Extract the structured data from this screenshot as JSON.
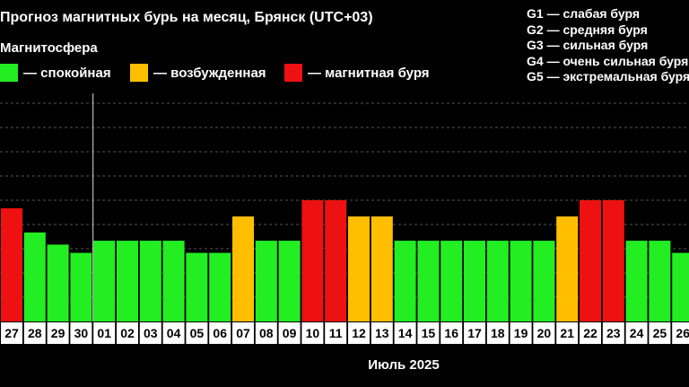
{
  "header": {
    "title": "Прогноз магнитных бурь на месяц, Брянск (UTC+03)",
    "magnetosphere_label": "Магнитосфера"
  },
  "legend": {
    "items": [
      {
        "label": "— спокойная",
        "color": "#22ee22"
      },
      {
        "label": "— возбужденная",
        "color": "#ffbf00"
      },
      {
        "label": "— магнитная буря",
        "color": "#ee1111"
      }
    ]
  },
  "g_legend": [
    "G1 — слабая буря",
    "G2 — средняя буря",
    "G3 — сильная буря",
    "G4 — очень сильная буря",
    "G5 — экстремальная буря"
  ],
  "chart_data": {
    "type": "bar",
    "title": "Прогноз магнитных бурь на месяц, Брянск (UTC+03)",
    "xlabel": "Июль 2025",
    "ylabel": "",
    "categories": [
      "27",
      "28",
      "29",
      "30",
      "01",
      "02",
      "03",
      "04",
      "05",
      "06",
      "07",
      "08",
      "09",
      "10",
      "11",
      "12",
      "13",
      "14",
      "15",
      "16",
      "17",
      "18",
      "19",
      "20",
      "21",
      "22",
      "23",
      "24",
      "25",
      "26"
    ],
    "values": [
      4.67,
      3.67,
      3.17,
      2.83,
      3.33,
      3.33,
      3.33,
      3.33,
      2.83,
      2.83,
      4.33,
      3.33,
      3.33,
      5.0,
      5.0,
      4.33,
      4.33,
      3.33,
      3.33,
      3.33,
      3.33,
      3.33,
      3.33,
      3.33,
      4.33,
      5.0,
      5.0,
      3.33,
      3.33,
      2.83
    ],
    "status": [
      "storm",
      "calm",
      "calm",
      "calm",
      "calm",
      "calm",
      "calm",
      "calm",
      "calm",
      "calm",
      "excited",
      "calm",
      "calm",
      "storm",
      "storm",
      "excited",
      "excited",
      "calm",
      "calm",
      "calm",
      "calm",
      "calm",
      "calm",
      "calm",
      "excited",
      "storm",
      "storm",
      "calm",
      "calm",
      "calm"
    ],
    "status_colors": {
      "calm": "#22ee22",
      "excited": "#ffbf00",
      "storm": "#ee1111"
    },
    "ylim": [
      0,
      9
    ],
    "grid": true,
    "today_marker_after": "30"
  }
}
